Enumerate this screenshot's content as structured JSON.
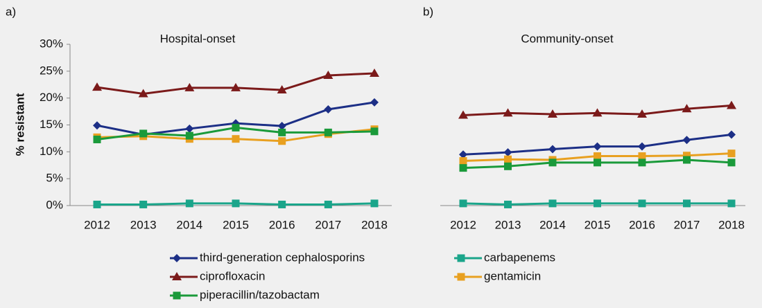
{
  "chart_data": [
    {
      "type": "line",
      "annotation": "a)",
      "title": "Hospital-onset",
      "ylabel": "% resistant",
      "categories": [
        "2012",
        "2013",
        "2014",
        "2015",
        "2016",
        "2017",
        "2018"
      ],
      "ylim": [
        0,
        30
      ],
      "yticks": [
        {
          "value": 0,
          "label": "0%"
        },
        {
          "value": 5,
          "label": "5%"
        },
        {
          "value": 10,
          "label": "10%"
        },
        {
          "value": 15,
          "label": "15%"
        },
        {
          "value": 20,
          "label": "20%"
        },
        {
          "value": 25,
          "label": "25%"
        },
        {
          "value": 30,
          "label": "30%"
        }
      ],
      "series": [
        {
          "name": "third-generation cephalosporins",
          "color": "#1c2f86",
          "marker": "diamond",
          "values": [
            14.9,
            13.2,
            14.3,
            15.3,
            14.8,
            17.9,
            19.2
          ]
        },
        {
          "name": "carbapenems",
          "color": "#1aa58a",
          "marker": "square",
          "values": [
            0.2,
            0.2,
            0.4,
            0.4,
            0.2,
            0.2,
            0.4
          ]
        },
        {
          "name": "ciprofloxacin",
          "color": "#7b1a1a",
          "marker": "triangle",
          "values": [
            22.0,
            20.8,
            21.9,
            21.9,
            21.5,
            24.2,
            24.6
          ]
        },
        {
          "name": "gentamicin",
          "color": "#e8a020",
          "marker": "square",
          "values": [
            12.7,
            12.9,
            12.4,
            12.4,
            12.0,
            13.3,
            14.2
          ]
        },
        {
          "name": "piperacillin/tazobactam",
          "color": "#1a9a3a",
          "marker": "square",
          "values": [
            12.3,
            13.4,
            13.0,
            14.5,
            13.6,
            13.6,
            13.8
          ]
        }
      ]
    },
    {
      "type": "line",
      "annotation": "b)",
      "title": "Community-onset",
      "categories": [
        "2012",
        "2013",
        "2014",
        "2015",
        "2016",
        "2017",
        "2018"
      ],
      "ylim": [
        0,
        30
      ],
      "series": [
        {
          "color": "#1c2f86",
          "marker": "diamond",
          "values": [
            9.5,
            9.9,
            10.5,
            11.0,
            11.0,
            12.2,
            13.2
          ]
        },
        {
          "color": "#1aa58a",
          "marker": "square",
          "values": [
            0.4,
            0.2,
            0.4,
            0.4,
            0.4,
            0.4,
            0.4
          ]
        },
        {
          "color": "#7b1a1a",
          "marker": "triangle",
          "values": [
            16.8,
            17.2,
            17.0,
            17.2,
            17.0,
            18.0,
            18.6
          ]
        },
        {
          "color": "#e8a020",
          "marker": "square",
          "values": [
            8.3,
            8.6,
            8.5,
            9.2,
            9.2,
            9.3,
            9.7
          ]
        },
        {
          "color": "#1a9a3a",
          "marker": "square",
          "values": [
            7.0,
            7.3,
            8.0,
            8.0,
            8.0,
            8.5,
            8.0
          ]
        }
      ]
    }
  ]
}
